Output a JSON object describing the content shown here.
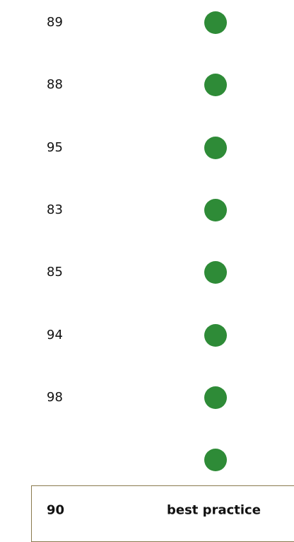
{
  "rows": [
    {
      "score": 89
    },
    {
      "score": 88
    },
    {
      "score": 95
    },
    {
      "score": 83
    },
    {
      "score": 85
    },
    {
      "score": 94
    },
    {
      "score": 98
    },
    {}
  ],
  "footer": {
    "score": 90,
    "label": "best practice"
  }
}
